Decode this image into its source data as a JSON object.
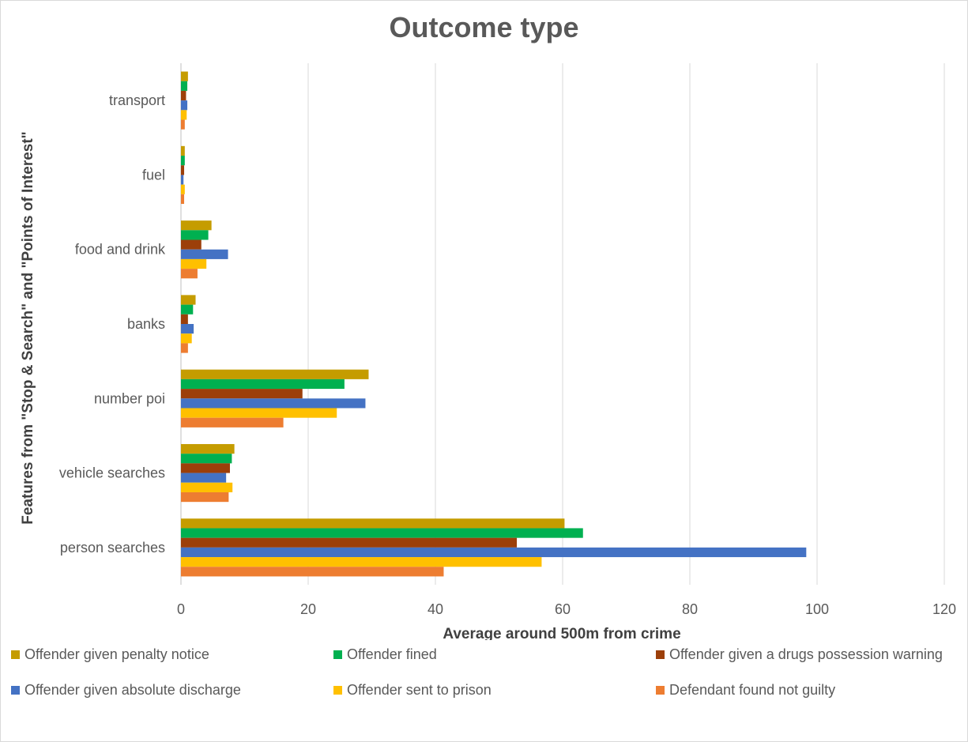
{
  "chart_data": {
    "type": "bar",
    "orientation": "horizontal",
    "title": "Outcome type",
    "xlabel": "Average around 500m from crime",
    "ylabel": "Features from \"Stop & Search\" and \"Points of Interest\"",
    "xlim": [
      0,
      120
    ],
    "xticks": [
      0,
      20,
      40,
      60,
      80,
      100,
      120
    ],
    "grid": true,
    "legend_position": "bottom",
    "categories": [
      "transport",
      "fuel",
      "food and drink",
      "banks",
      "number poi",
      "vehicle searches",
      "person searches"
    ],
    "series": [
      {
        "name": "Offender given penalty notice",
        "color": "#C59C00",
        "values": [
          1.1,
          0.6,
          4.8,
          2.3,
          29.5,
          8.4,
          60.3
        ]
      },
      {
        "name": "Offender fined",
        "color": "#00B050",
        "values": [
          1.0,
          0.6,
          4.3,
          1.9,
          25.7,
          8.0,
          63.2
        ]
      },
      {
        "name": "Offender given a drugs possession warning",
        "color": "#9C3F0A",
        "values": [
          0.8,
          0.5,
          3.2,
          1.1,
          19.1,
          7.7,
          52.8
        ]
      },
      {
        "name": "Offender given absolute discharge",
        "color": "#4472C4",
        "values": [
          1.0,
          0.4,
          7.4,
          2.0,
          29.0,
          7.1,
          98.3
        ]
      },
      {
        "name": "Offender sent to prison",
        "color": "#FFC000",
        "values": [
          0.9,
          0.6,
          4.0,
          1.7,
          24.5,
          8.1,
          56.7
        ]
      },
      {
        "name": "Defendant found not guilty",
        "color": "#ED7D31",
        "values": [
          0.6,
          0.5,
          2.6,
          1.1,
          16.1,
          7.5,
          41.3
        ]
      }
    ]
  }
}
